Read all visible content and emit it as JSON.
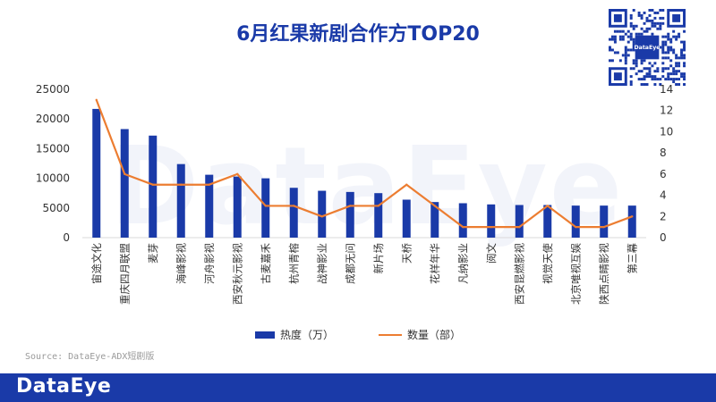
{
  "title": "6月红果新剧合作方TOP20",
  "watermark": "DataEye",
  "qr_icon": "qr-code-icon",
  "qr_logo_text": "DataEye",
  "source": "Source: DataEye-ADX短剧版",
  "footer": {
    "logo": "DataEye"
  },
  "colors": {
    "bar": "#1a3aa8",
    "line": "#ec7d31",
    "footer": "#1a3aa8"
  },
  "chart_data": {
    "type": "bar",
    "categories": [
      "宙途文化",
      "重庆四月联盟",
      "麦芽",
      "海峰影视",
      "河舟影视",
      "西安秋元影视",
      "古麦嘉禾",
      "杭州青榕",
      "战神影业",
      "成都无问",
      "新片场",
      "天桥",
      "花样年华",
      "凡纳影业",
      "阅文",
      "西安昆燃影视",
      "视觉天使",
      "北京唯视互娱",
      "陕西点睛影视",
      "第三幕"
    ],
    "series": [
      {
        "name": "热度（万）",
        "type": "bar",
        "axis": "left",
        "values": [
          21700,
          18300,
          17200,
          12400,
          10600,
          10300,
          10000,
          8400,
          7900,
          7700,
          7500,
          6400,
          6000,
          5800,
          5600,
          5500,
          5500,
          5400,
          5400,
          5400
        ]
      },
      {
        "name": "数量（部）",
        "type": "line",
        "axis": "right",
        "values": [
          13,
          6,
          5,
          5,
          5,
          6,
          3,
          3,
          2,
          3,
          3,
          5,
          3,
          1,
          1,
          1,
          3,
          1,
          1,
          2
        ]
      }
    ],
    "y_left": {
      "min": 0,
      "max": 25000,
      "ticks": [
        "0",
        "5000",
        "10000",
        "15000",
        "20000",
        "25000"
      ]
    },
    "y_right": {
      "min": 0,
      "max": 14,
      "ticks": [
        "0",
        "2",
        "4",
        "6",
        "8",
        "10",
        "12",
        "14"
      ]
    },
    "grid": false,
    "legend_position": "bottom"
  }
}
